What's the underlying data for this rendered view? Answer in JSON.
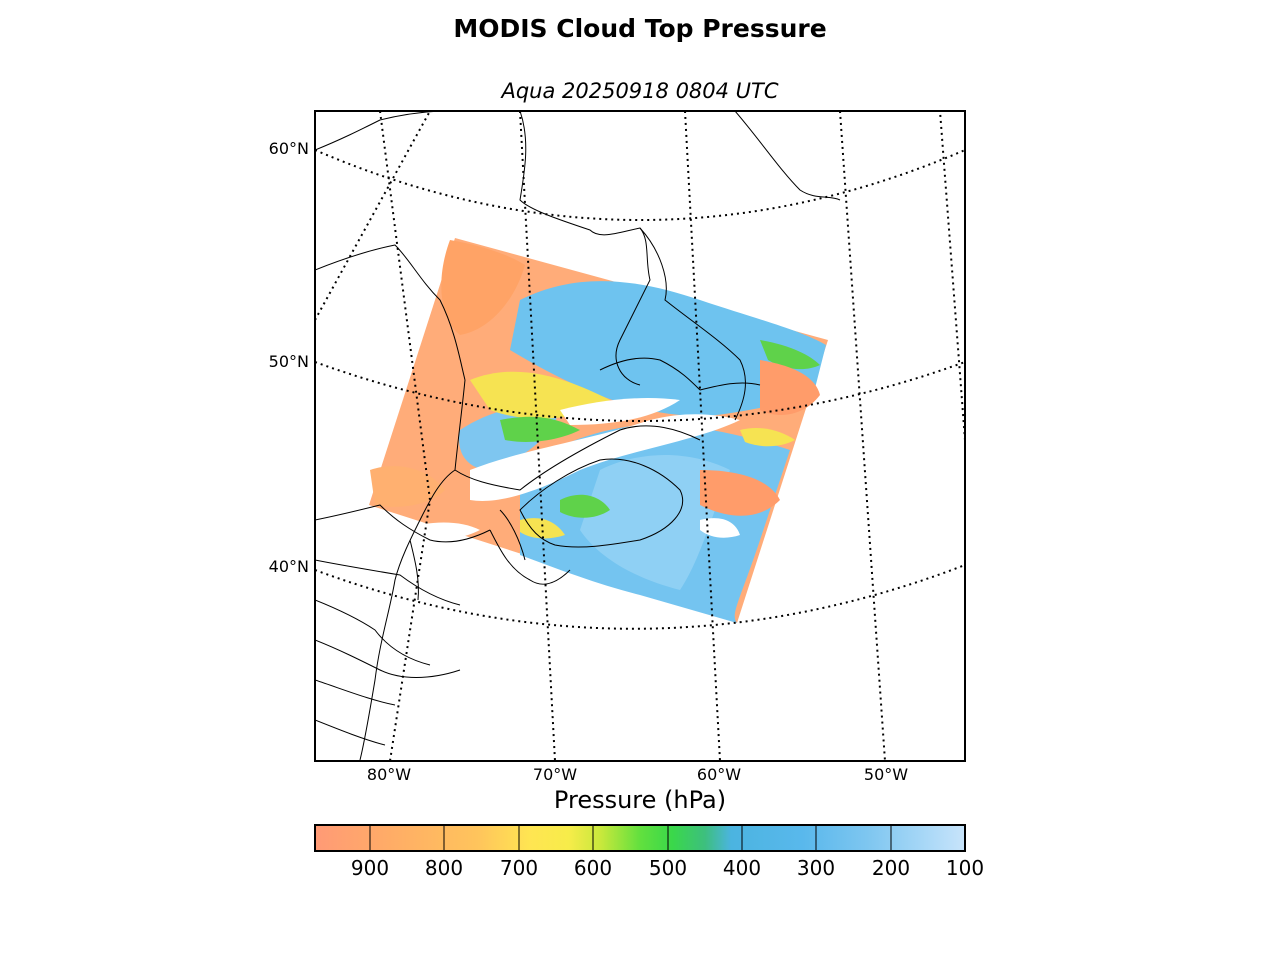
{
  "title": "MODIS Cloud Top Pressure",
  "subtitle": "Aqua 20250918 0804 UTC",
  "lat_labels": [
    "60°N",
    "50°N",
    "40°N"
  ],
  "lon_labels": [
    "80°W",
    "70°W",
    "60°W",
    "50°W"
  ],
  "colorbar": {
    "label": "Pressure (hPa)",
    "ticks": [
      "900",
      "800",
      "700",
      "600",
      "500",
      "400",
      "300",
      "200",
      "100"
    ],
    "range": [
      975,
      100
    ],
    "stops": [
      "#ff9a76",
      "#ffad66",
      "#ffc45c",
      "#ffe552",
      "#f7ec4a",
      "#c8e83c",
      "#62e03e",
      "#3ad84a",
      "#3dbf7e",
      "#4bb4e0",
      "#59b8ec",
      "#7ec6f0",
      "#a4d6f6",
      "#c8e4fb"
    ]
  },
  "map": {
    "projection": "polar stereographic",
    "extent": "north-east North America and Atlantic",
    "cloud_fill_colors": [
      "#ffa366",
      "#ffc06a",
      "#6ec3ef",
      "#8fd0f4",
      "#53d35a"
    ]
  }
}
